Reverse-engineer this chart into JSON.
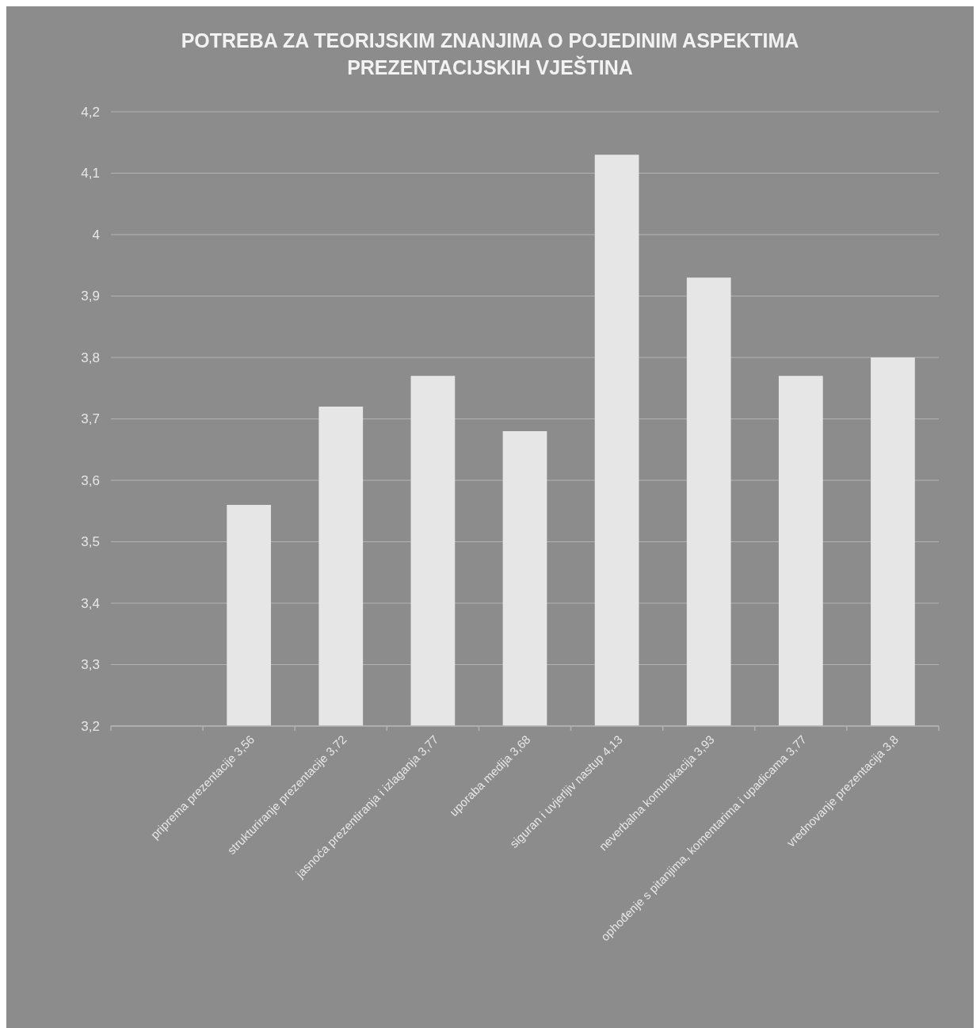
{
  "chart_data": {
    "type": "bar",
    "title": "POTREBA ZA TEORIJSKIM ZNANJIMA O POJEDINIM ASPEKTIMA PREZENTACIJSKIH VJEŠTINA",
    "categories": [
      null,
      "priprema prezentacije 3,56",
      "strukturiranje prezentacije 3,72",
      "jasnoća prezentiranja i izlaganja 3,77",
      "uporaba medija 3,68",
      "siguran i uvjerljiv nastup 4,13",
      "neverbalna komunikacija 3,93",
      "ophođenje s pitanjima, komentarima i upadicama 3,77",
      "vrednovanje prezentacija 3,8"
    ],
    "values": [
      null,
      3.56,
      3.72,
      3.77,
      3.68,
      4.13,
      3.93,
      3.77,
      3.8
    ],
    "color": "#e6e6e6",
    "ylim": [
      3.2,
      4.2
    ],
    "yticks": [
      {
        "value": 3.2,
        "label": "3,2"
      },
      {
        "value": 3.3,
        "label": "3,3"
      },
      {
        "value": 3.4,
        "label": "3,4"
      },
      {
        "value": 3.5,
        "label": "3,5"
      },
      {
        "value": 3.6,
        "label": "3,6"
      },
      {
        "value": 3.7,
        "label": "3,7"
      },
      {
        "value": 3.8,
        "label": "3,8"
      },
      {
        "value": 3.9,
        "label": "3,9"
      },
      {
        "value": 4,
        "label": "4"
      },
      {
        "value": 4.1,
        "label": "4,1"
      },
      {
        "value": 4.2,
        "label": "4,2"
      }
    ],
    "grid": "y"
  }
}
